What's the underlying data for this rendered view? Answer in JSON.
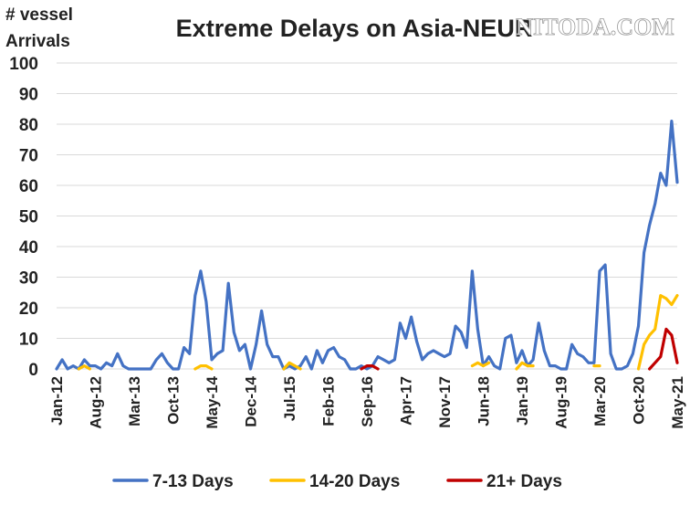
{
  "chart_data": {
    "type": "line",
    "title": "Extreme Delays on Asia-NEUR",
    "ylabel_lines": [
      "# vessel",
      "Arrivals"
    ],
    "xlabel": "",
    "ylim": [
      0,
      100
    ],
    "yticks": [
      0,
      10,
      20,
      30,
      40,
      50,
      60,
      70,
      80,
      90,
      100
    ],
    "grid": true,
    "legend_position": "bottom",
    "x_start": "Jan-12",
    "x_end": "May-21",
    "xtick_labels": [
      "Jan-12",
      "Aug-12",
      "Mar-13",
      "Oct-13",
      "May-14",
      "Dec-14",
      "Jul-15",
      "Feb-16",
      "Sep-16",
      "Apr-17",
      "Nov-17",
      "Jun-18",
      "Jan-19",
      "Aug-19",
      "Mar-20",
      "Oct-20",
      "May-21"
    ],
    "series": [
      {
        "name": "7-13 Days",
        "color": "#4472c4",
        "points": [
          [
            "Jan-12",
            0
          ],
          [
            "Feb-12",
            3
          ],
          [
            "Mar-12",
            0
          ],
          [
            "Apr-12",
            1
          ],
          [
            "May-12",
            0
          ],
          [
            "Jun-12",
            3
          ],
          [
            "Jul-12",
            1
          ],
          [
            "Aug-12",
            1
          ],
          [
            "Sep-12",
            0
          ],
          [
            "Oct-12",
            2
          ],
          [
            "Nov-12",
            1
          ],
          [
            "Dec-12",
            5
          ],
          [
            "Jan-13",
            1
          ],
          [
            "Feb-13",
            0
          ],
          [
            "Mar-13",
            0
          ],
          [
            "Apr-13",
            0
          ],
          [
            "May-13",
            0
          ],
          [
            "Jun-13",
            0
          ],
          [
            "Jul-13",
            3
          ],
          [
            "Aug-13",
            5
          ],
          [
            "Sep-13",
            2
          ],
          [
            "Oct-13",
            0
          ],
          [
            "Nov-13",
            0
          ],
          [
            "Dec-13",
            7
          ],
          [
            "Jan-14",
            5
          ],
          [
            "Feb-14",
            24
          ],
          [
            "Mar-14",
            32
          ],
          [
            "Apr-14",
            22
          ],
          [
            "May-14",
            3
          ],
          [
            "Jun-14",
            5
          ],
          [
            "Jul-14",
            6
          ],
          [
            "Aug-14",
            28
          ],
          [
            "Sep-14",
            12
          ],
          [
            "Oct-14",
            6
          ],
          [
            "Nov-14",
            8
          ],
          [
            "Dec-14",
            0
          ],
          [
            "Jan-15",
            8
          ],
          [
            "Feb-15",
            19
          ],
          [
            "Mar-15",
            8
          ],
          [
            "Apr-15",
            4
          ],
          [
            "May-15",
            4
          ],
          [
            "Jun-15",
            0
          ],
          [
            "Jul-15",
            1
          ],
          [
            "Aug-15",
            0
          ],
          [
            "Sep-15",
            1
          ],
          [
            "Oct-15",
            4
          ],
          [
            "Nov-15",
            0
          ],
          [
            "Dec-15",
            6
          ],
          [
            "Jan-16",
            2
          ],
          [
            "Feb-16",
            6
          ],
          [
            "Mar-16",
            7
          ],
          [
            "Apr-16",
            4
          ],
          [
            "May-16",
            3
          ],
          [
            "Jun-16",
            0
          ],
          [
            "Jul-16",
            0
          ],
          [
            "Aug-16",
            1
          ],
          [
            "Sep-16",
            0
          ],
          [
            "Oct-16",
            1
          ],
          [
            "Nov-16",
            4
          ],
          [
            "Dec-16",
            3
          ],
          [
            "Jan-17",
            2
          ],
          [
            "Feb-17",
            3
          ],
          [
            "Mar-17",
            15
          ],
          [
            "Apr-17",
            10
          ],
          [
            "May-17",
            17
          ],
          [
            "Jun-17",
            9
          ],
          [
            "Jul-17",
            3
          ],
          [
            "Aug-17",
            5
          ],
          [
            "Sep-17",
            6
          ],
          [
            "Oct-17",
            5
          ],
          [
            "Nov-17",
            4
          ],
          [
            "Dec-17",
            5
          ],
          [
            "Jan-18",
            14
          ],
          [
            "Feb-18",
            12
          ],
          [
            "Mar-18",
            7
          ],
          [
            "Apr-18",
            32
          ],
          [
            "May-18",
            13
          ],
          [
            "Jun-18",
            1
          ],
          [
            "Jul-18",
            4
          ],
          [
            "Aug-18",
            1
          ],
          [
            "Sep-18",
            0
          ],
          [
            "Oct-18",
            10
          ],
          [
            "Nov-18",
            11
          ],
          [
            "Dec-18",
            2
          ],
          [
            "Jan-19",
            6
          ],
          [
            "Feb-19",
            1
          ],
          [
            "Mar-19",
            3
          ],
          [
            "Apr-19",
            15
          ],
          [
            "May-19",
            6
          ],
          [
            "Jun-19",
            1
          ],
          [
            "Jul-19",
            1
          ],
          [
            "Aug-19",
            0
          ],
          [
            "Sep-19",
            0
          ],
          [
            "Oct-19",
            8
          ],
          [
            "Nov-19",
            5
          ],
          [
            "Dec-19",
            4
          ],
          [
            "Jan-20",
            2
          ],
          [
            "Feb-20",
            2
          ],
          [
            "Mar-20",
            32
          ],
          [
            "Apr-20",
            34
          ],
          [
            "May-20",
            5
          ],
          [
            "Jun-20",
            0
          ],
          [
            "Jul-20",
            0
          ],
          [
            "Aug-20",
            1
          ],
          [
            "Sep-20",
            5
          ],
          [
            "Oct-20",
            14
          ],
          [
            "Nov-20",
            38
          ],
          [
            "Dec-20",
            47
          ],
          [
            "Jan-21",
            54
          ],
          [
            "Feb-21",
            64
          ],
          [
            "Mar-21",
            60
          ],
          [
            "Apr-21",
            81
          ],
          [
            "May-21",
            61
          ]
        ]
      },
      {
        "name": "14-20 Days",
        "color": "#ffc000",
        "segments": [
          [
            [
              "May-12",
              0
            ],
            [
              "Jun-12",
              1
            ],
            [
              "Jul-12",
              0
            ]
          ],
          [
            [
              "Feb-14",
              0
            ],
            [
              "Mar-14",
              1
            ],
            [
              "Apr-14",
              1
            ],
            [
              "May-14",
              0
            ]
          ],
          [
            [
              "Jun-15",
              0
            ],
            [
              "Jul-15",
              2
            ],
            [
              "Aug-15",
              1
            ],
            [
              "Sep-15",
              0
            ]
          ],
          [
            [
              "Apr-18",
              1
            ],
            [
              "May-18",
              2
            ],
            [
              "Jun-18",
              1
            ],
            [
              "Jul-18",
              2
            ]
          ],
          [
            [
              "Dec-18",
              0
            ],
            [
              "Jan-19",
              2
            ],
            [
              "Feb-19",
              1
            ],
            [
              "Mar-19",
              1
            ]
          ],
          [
            [
              "Feb-20",
              1
            ],
            [
              "Mar-20",
              1
            ]
          ],
          [
            [
              "Oct-20",
              0
            ],
            [
              "Nov-20",
              8
            ],
            [
              "Dec-20",
              11
            ],
            [
              "Jan-21",
              13
            ],
            [
              "Feb-21",
              24
            ],
            [
              "Mar-21",
              23
            ],
            [
              "Apr-21",
              21
            ],
            [
              "May-21",
              24
            ]
          ]
        ]
      },
      {
        "name": "21+ Days",
        "color": "#c00000",
        "segments": [
          [
            [
              "Aug-16",
              0
            ],
            [
              "Sep-16",
              1
            ],
            [
              "Oct-16",
              1
            ],
            [
              "Nov-16",
              0
            ]
          ],
          [
            [
              "Dec-20",
              0
            ],
            [
              "Jan-21",
              2
            ],
            [
              "Feb-21",
              4
            ],
            [
              "Mar-21",
              13
            ],
            [
              "Apr-21",
              11
            ],
            [
              "May-21",
              2
            ]
          ]
        ]
      }
    ]
  },
  "watermark": "NITODA.COM"
}
